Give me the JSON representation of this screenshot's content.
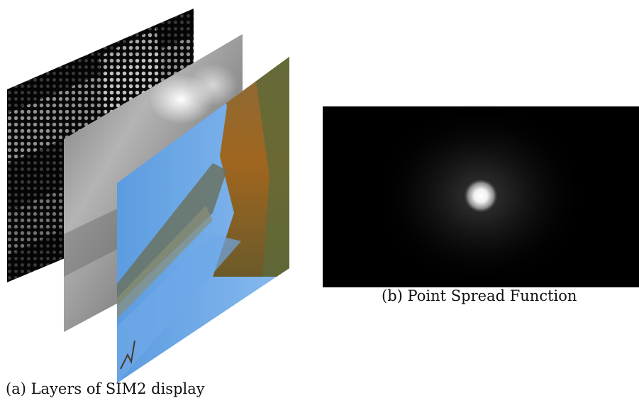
{
  "figure_a": {
    "caption": "(a) Layers of SIM2 display"
  },
  "figure_b": {
    "caption": "(b) Point Spread Function"
  }
}
